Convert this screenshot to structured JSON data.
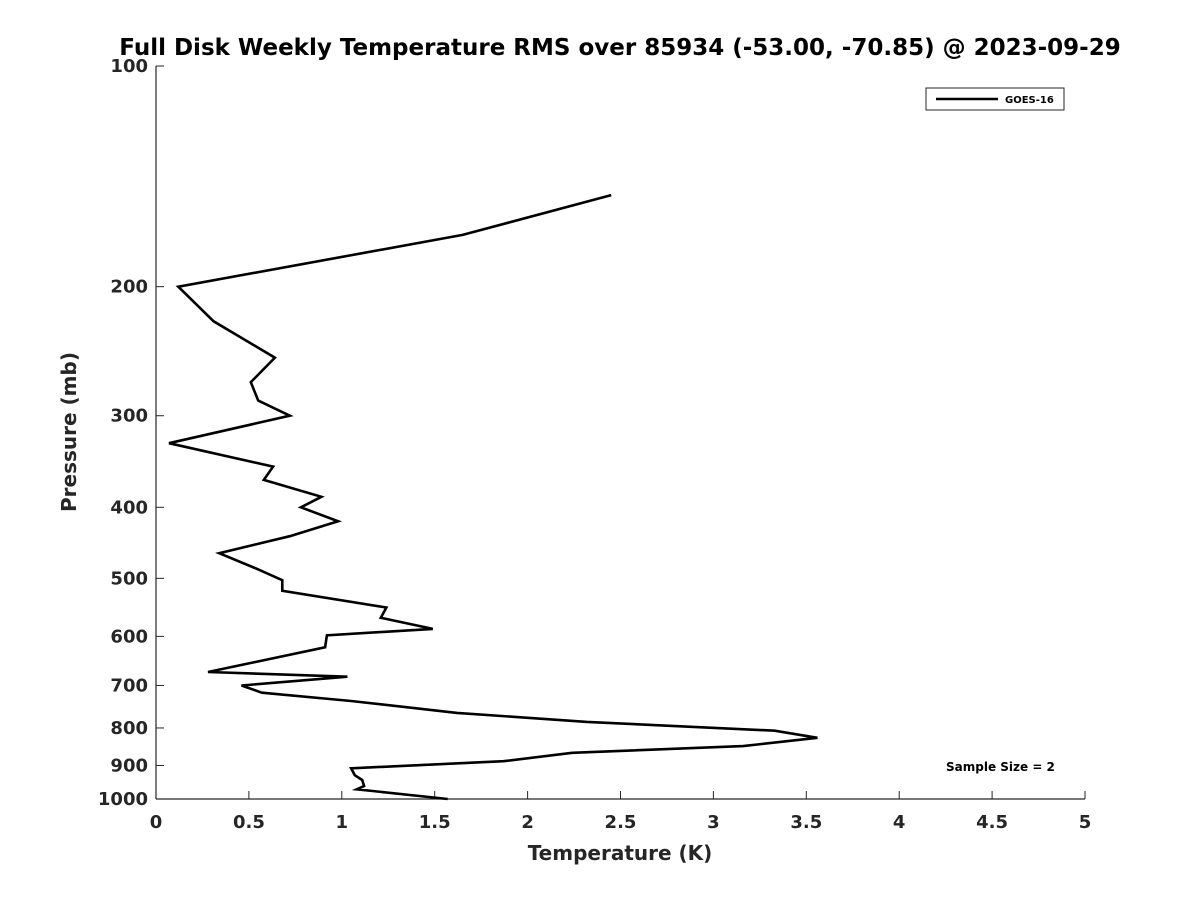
{
  "chart_data": {
    "type": "line",
    "title": "Full Disk Weekly Temperature RMS over 85934 (-53.00, -70.85) @ 2023-09-29",
    "xlabel": "Temperature (K)",
    "ylabel": "Pressure (mb)",
    "xlim": [
      0,
      5
    ],
    "ylim": [
      100,
      1000
    ],
    "y_scale": "log",
    "y_reversed": true,
    "x_ticks": [
      "0",
      "0.5",
      "1",
      "1.5",
      "2",
      "2.5",
      "3",
      "3.5",
      "4",
      "4.5",
      "5"
    ],
    "y_ticks": [
      "100",
      "200",
      "300",
      "400",
      "500",
      "600",
      "700",
      "800",
      "900",
      "1000"
    ],
    "grid": false,
    "legend_position": "top-right",
    "annotation": "Sample Size = 2",
    "series": [
      {
        "name": "GOES-16",
        "color": "#000000",
        "points": [
          [
            2.45,
            150
          ],
          [
            1.65,
            170
          ],
          [
            0.12,
            200
          ],
          [
            0.31,
            223
          ],
          [
            0.64,
            250
          ],
          [
            0.51,
            270
          ],
          [
            0.55,
            286
          ],
          [
            0.72,
            300
          ],
          [
            0.07,
            327
          ],
          [
            0.63,
            352
          ],
          [
            0.58,
            367
          ],
          [
            0.89,
            387
          ],
          [
            0.78,
            400
          ],
          [
            0.98,
            418
          ],
          [
            0.72,
            438
          ],
          [
            0.34,
            462
          ],
          [
            0.54,
            485
          ],
          [
            0.68,
            503
          ],
          [
            0.68,
            520
          ],
          [
            1.24,
            548
          ],
          [
            1.21,
            566
          ],
          [
            1.49,
            586
          ],
          [
            0.92,
            598
          ],
          [
            0.91,
            621
          ],
          [
            0.28,
            671
          ],
          [
            1.03,
            681
          ],
          [
            0.46,
            700
          ],
          [
            0.57,
            716
          ],
          [
            1.05,
            735
          ],
          [
            1.62,
            763
          ],
          [
            2.32,
            785
          ],
          [
            3.33,
            807
          ],
          [
            3.56,
            825
          ],
          [
            3.16,
            847
          ],
          [
            2.24,
            865
          ],
          [
            1.87,
            888
          ],
          [
            1.05,
            908
          ],
          [
            1.07,
            928
          ],
          [
            1.11,
            942
          ],
          [
            1.12,
            960
          ],
          [
            1.08,
            970
          ],
          [
            1.57,
            1000
          ]
        ]
      }
    ]
  }
}
